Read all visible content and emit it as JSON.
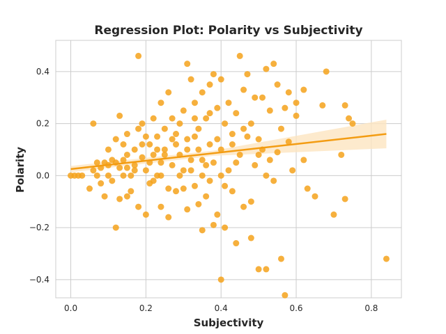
{
  "chart_data": {
    "type": "scatter",
    "title": "Regression Plot: Polarity vs Subjectivity",
    "xlabel": "Subjectivity",
    "ylabel": "Polarity",
    "xlim": [
      -0.04,
      0.88
    ],
    "ylim": [
      -0.47,
      0.52
    ],
    "xticks": [
      0.0,
      0.2,
      0.4,
      0.6,
      0.8
    ],
    "xtick_labels": [
      "0.0",
      "0.2",
      "0.4",
      "0.6",
      "0.8"
    ],
    "yticks": [
      -0.4,
      -0.2,
      0.0,
      0.2,
      0.4
    ],
    "ytick_labels": [
      "−0.4",
      "−0.2",
      "0.0",
      "0.2",
      "0.4"
    ],
    "grid": true,
    "colors": {
      "points": "#f5a21b",
      "line": "#f39c12",
      "band": "#fde5c0",
      "grid": "#cccccc"
    },
    "regression": {
      "x": [
        0.0,
        0.84
      ],
      "y": [
        0.025,
        0.16
      ],
      "ci_upper_end": 0.215,
      "ci_lower_end": 0.105
    },
    "points": [
      [
        0.0,
        0.0
      ],
      [
        0.01,
        0.0
      ],
      [
        0.02,
        0.0
      ],
      [
        0.03,
        0.0
      ],
      [
        0.05,
        -0.05
      ],
      [
        0.06,
        0.2
      ],
      [
        0.06,
        0.02
      ],
      [
        0.07,
        0.0
      ],
      [
        0.07,
        0.05
      ],
      [
        0.08,
        0.03
      ],
      [
        0.08,
        -0.03
      ],
      [
        0.09,
        0.05
      ],
      [
        0.09,
        -0.08
      ],
      [
        0.1,
        0.1
      ],
      [
        0.1,
        0.0
      ],
      [
        0.1,
        0.04
      ],
      [
        0.11,
        0.06
      ],
      [
        0.11,
        -0.02
      ],
      [
        0.12,
        0.14
      ],
      [
        0.12,
        0.05
      ],
      [
        0.12,
        -0.2
      ],
      [
        0.13,
        0.23
      ],
      [
        0.13,
        0.03
      ],
      [
        0.13,
        -0.09
      ],
      [
        0.14,
        0.12
      ],
      [
        0.14,
        0.06
      ],
      [
        0.15,
        0.16
      ],
      [
        0.15,
        -0.08
      ],
      [
        0.15,
        0.08
      ],
      [
        0.16,
        0.0
      ],
      [
        0.16,
        -0.06
      ],
      [
        0.17,
        0.1
      ],
      [
        0.17,
        0.04
      ],
      [
        0.18,
        0.46
      ],
      [
        0.18,
        0.18
      ],
      [
        0.18,
        -0.12
      ],
      [
        0.19,
        0.2
      ],
      [
        0.19,
        0.07
      ],
      [
        0.2,
        0.15
      ],
      [
        0.2,
        -0.15
      ],
      [
        0.2,
        0.02
      ],
      [
        0.21,
        0.12
      ],
      [
        0.21,
        -0.03
      ],
      [
        0.22,
        0.22
      ],
      [
        0.22,
        0.08
      ],
      [
        0.23,
        0.0
      ],
      [
        0.23,
        0.15
      ],
      [
        0.24,
        0.28
      ],
      [
        0.24,
        0.05
      ],
      [
        0.24,
        -0.12
      ],
      [
        0.25,
        0.18
      ],
      [
        0.25,
        0.1
      ],
      [
        0.26,
        0.32
      ],
      [
        0.26,
        -0.16
      ],
      [
        0.27,
        0.22
      ],
      [
        0.27,
        0.04
      ],
      [
        0.28,
        0.12
      ],
      [
        0.28,
        -0.06
      ],
      [
        0.29,
        0.2
      ],
      [
        0.29,
        0.08
      ],
      [
        0.3,
        0.25
      ],
      [
        0.3,
        0.02
      ],
      [
        0.31,
        0.43
      ],
      [
        0.31,
        -0.13
      ],
      [
        0.31,
        0.14
      ],
      [
        0.32,
        0.37
      ],
      [
        0.32,
        0.06
      ],
      [
        0.33,
        0.28
      ],
      [
        0.33,
        -0.04
      ],
      [
        0.34,
        0.18
      ],
      [
        0.34,
        0.1
      ],
      [
        0.35,
        -0.21
      ],
      [
        0.35,
        0.32
      ],
      [
        0.35,
        0.0
      ],
      [
        0.36,
        0.22
      ],
      [
        0.36,
        -0.08
      ],
      [
        0.37,
        0.35
      ],
      [
        0.37,
        0.12
      ],
      [
        0.38,
        0.39
      ],
      [
        0.38,
        -0.19
      ],
      [
        0.38,
        0.05
      ],
      [
        0.39,
        0.26
      ],
      [
        0.39,
        -0.15
      ],
      [
        0.4,
        0.37
      ],
      [
        0.4,
        -0.4
      ],
      [
        0.4,
        0.1
      ],
      [
        0.41,
        0.2
      ],
      [
        0.41,
        -0.2
      ],
      [
        0.42,
        0.28
      ],
      [
        0.42,
        0.02
      ],
      [
        0.43,
        0.16
      ],
      [
        0.43,
        -0.06
      ],
      [
        0.44,
        -0.26
      ],
      [
        0.44,
        0.24
      ],
      [
        0.45,
        0.46
      ],
      [
        0.45,
        0.08
      ],
      [
        0.46,
        0.33
      ],
      [
        0.46,
        -0.12
      ],
      [
        0.47,
        0.39
      ],
      [
        0.47,
        0.15
      ],
      [
        0.48,
        -0.24
      ],
      [
        0.48,
        0.2
      ],
      [
        0.49,
        0.04
      ],
      [
        0.49,
        0.3
      ],
      [
        0.5,
        -0.36
      ],
      [
        0.5,
        0.14
      ],
      [
        0.51,
        0.1
      ],
      [
        0.51,
        0.3
      ],
      [
        0.52,
        0.41
      ],
      [
        0.52,
        -0.36
      ],
      [
        0.53,
        0.25
      ],
      [
        0.53,
        0.06
      ],
      [
        0.54,
        0.43
      ],
      [
        0.55,
        0.35
      ],
      [
        0.55,
        0.09
      ],
      [
        0.56,
        -0.32
      ],
      [
        0.57,
        -0.46
      ],
      [
        0.57,
        0.26
      ],
      [
        0.58,
        0.13
      ],
      [
        0.58,
        0.32
      ],
      [
        0.59,
        0.02
      ],
      [
        0.6,
        0.23
      ],
      [
        0.62,
        0.33
      ],
      [
        0.62,
        0.06
      ],
      [
        0.63,
        -0.05
      ],
      [
        0.65,
        -0.08
      ],
      [
        0.67,
        0.27
      ],
      [
        0.68,
        0.4
      ],
      [
        0.7,
        -0.15
      ],
      [
        0.72,
        0.08
      ],
      [
        0.73,
        0.27
      ],
      [
        0.73,
        -0.09
      ],
      [
        0.74,
        0.22
      ],
      [
        0.75,
        0.2
      ],
      [
        0.84,
        -0.32
      ],
      [
        0.22,
        -0.02
      ],
      [
        0.24,
        0.0
      ],
      [
        0.26,
        -0.05
      ],
      [
        0.28,
        0.16
      ],
      [
        0.3,
        -0.05
      ],
      [
        0.32,
        0.02
      ],
      [
        0.33,
        0.15
      ],
      [
        0.34,
        -0.11
      ],
      [
        0.36,
        0.04
      ],
      [
        0.37,
        0.24
      ],
      [
        0.39,
        0.14
      ],
      [
        0.4,
        0.0
      ],
      [
        0.41,
        -0.04
      ],
      [
        0.43,
        0.12
      ],
      [
        0.44,
        0.05
      ],
      [
        0.46,
        0.18
      ],
      [
        0.48,
        -0.1
      ],
      [
        0.5,
        0.08
      ],
      [
        0.52,
        0.0
      ],
      [
        0.54,
        -0.02
      ],
      [
        0.56,
        0.18
      ],
      [
        0.6,
        0.28
      ],
      [
        0.25,
        0.08
      ],
      [
        0.27,
        0.14
      ],
      [
        0.29,
        0.0
      ],
      [
        0.31,
        0.1
      ],
      [
        0.33,
        0.22
      ],
      [
        0.35,
        0.06
      ],
      [
        0.37,
        -0.02
      ],
      [
        0.19,
        0.12
      ],
      [
        0.21,
        0.05
      ],
      [
        0.23,
        0.1
      ],
      [
        0.17,
        0.02
      ],
      [
        0.15,
        0.03
      ],
      [
        0.14,
        0.0
      ]
    ]
  }
}
